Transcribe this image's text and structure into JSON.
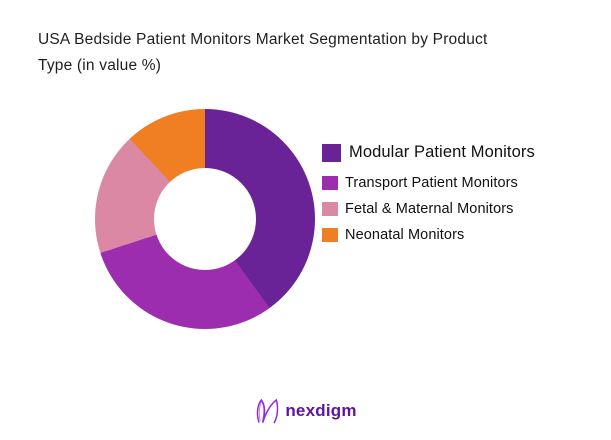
{
  "page": {
    "background_color": "#ffffff"
  },
  "header": {
    "title_line1": "USA Bedside Patient Monitors Market Segmentation by Product",
    "title_line2": "Type (in value %)"
  },
  "chart_data": {
    "type": "pie",
    "variant": "donut",
    "title": "USA Bedside Patient Monitors Market Segmentation by Product Type (in value %)",
    "unit": "value %",
    "start_angle_deg": 0,
    "direction": "clockwise",
    "inner_radius_ratio": 0.46,
    "legend_position": "right",
    "data_labels_shown": false,
    "segments": [
      {
        "label": "Modular Patient Monitors",
        "value": 40,
        "color": "#692396"
      },
      {
        "label": "Transport Patient Monitors",
        "value": 30,
        "color": "#9C2DAF"
      },
      {
        "label": "Fetal & Maternal Monitors",
        "value": 18,
        "color": "#DB88A5"
      },
      {
        "label": "Neonatal Monitors",
        "value": 12,
        "color": "#F07E23"
      }
    ]
  },
  "footer": {
    "logo_text": "nexdigm",
    "logo_icon": "nexdigm-wave-n-icon",
    "logo_color": "#5D13A6"
  }
}
